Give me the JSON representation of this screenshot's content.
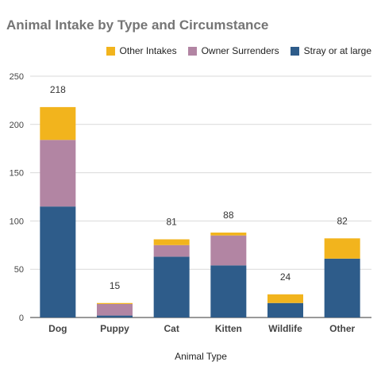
{
  "title": "Animal Intake by Type and Circumstance",
  "chart_data": {
    "type": "bar",
    "stacked": true,
    "title": "Animal Intake by Type and Circumstance",
    "xlabel": "Animal Type",
    "ylabel": "",
    "ylim": [
      0,
      250
    ],
    "yticks": [
      0,
      50,
      100,
      150,
      200,
      250
    ],
    "grid": true,
    "legend_position": "top-right",
    "categories": [
      "Dog",
      "Puppy",
      "Cat",
      "Kitten",
      "Wildlife",
      "Other"
    ],
    "series": [
      {
        "name": "Stray or at large",
        "color": "#2e5c8a",
        "values": [
          115,
          2,
          63,
          54,
          15,
          61
        ]
      },
      {
        "name": "Owner Surrenders",
        "color": "#b285a3",
        "values": [
          69,
          12,
          12,
          31,
          0,
          0
        ]
      },
      {
        "name": "Other Intakes",
        "color": "#f2b41d",
        "values": [
          34,
          1,
          6,
          3,
          9,
          21
        ]
      }
    ],
    "totals": [
      218,
      15,
      81,
      88,
      24,
      82
    ]
  }
}
